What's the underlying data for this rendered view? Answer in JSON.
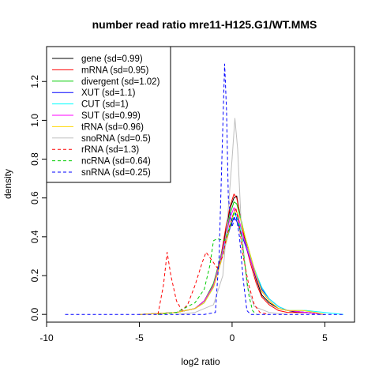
{
  "chart_data": {
    "type": "line",
    "title": "number read ratio mre11-H125.G1/WT.MMS",
    "xlabel": "log2 ratio",
    "ylabel": "density",
    "xlim": [
      -10,
      6.6
    ],
    "ylim": [
      -0.04,
      1.38
    ],
    "x_ticks": [
      -10,
      -5,
      0,
      5
    ],
    "y_ticks": [
      0.0,
      0.2,
      0.4,
      0.6,
      0.8,
      1.0,
      1.2
    ],
    "x_tick_labels": [
      "-10",
      "-5",
      "0",
      "5"
    ],
    "y_tick_labels": [
      "0.0",
      "0.2",
      "0.4",
      "0.6",
      "0.8",
      "1.0",
      "1.2"
    ],
    "grid": false,
    "legend_position": "top-left",
    "series": [
      {
        "name": "gene (sd=0.99)",
        "color": "#000000",
        "dash": "solid",
        "points": [
          [
            -5,
            0
          ],
          [
            -3,
            0.01
          ],
          [
            -2,
            0.03
          ],
          [
            -1.5,
            0.07
          ],
          [
            -1,
            0.15
          ],
          [
            -0.6,
            0.3
          ],
          [
            -0.3,
            0.45
          ],
          [
            -0.1,
            0.55
          ],
          [
            0.1,
            0.6
          ],
          [
            0.25,
            0.61
          ],
          [
            0.45,
            0.5
          ],
          [
            0.7,
            0.38
          ],
          [
            1,
            0.28
          ],
          [
            1.3,
            0.18
          ],
          [
            1.6,
            0.1
          ],
          [
            2,
            0.06
          ],
          [
            2.5,
            0.03
          ],
          [
            3,
            0.02
          ],
          [
            3.5,
            0.01
          ],
          [
            4,
            0.01
          ],
          [
            5,
            0
          ]
        ]
      },
      {
        "name": "mRNA (sd=0.95)",
        "color": "#ff0000",
        "dash": "solid",
        "points": [
          [
            -5,
            0
          ],
          [
            -3,
            0.01
          ],
          [
            -2,
            0.03
          ],
          [
            -1.5,
            0.07
          ],
          [
            -1,
            0.15
          ],
          [
            -0.6,
            0.3
          ],
          [
            -0.3,
            0.47
          ],
          [
            -0.1,
            0.56
          ],
          [
            0.1,
            0.62
          ],
          [
            0.25,
            0.6
          ],
          [
            0.45,
            0.5
          ],
          [
            0.7,
            0.37
          ],
          [
            1,
            0.26
          ],
          [
            1.3,
            0.16
          ],
          [
            1.6,
            0.09
          ],
          [
            2,
            0.05
          ],
          [
            2.5,
            0.02
          ],
          [
            3,
            0.01
          ],
          [
            4,
            0.01
          ],
          [
            5,
            0
          ]
        ]
      },
      {
        "name": "divergent (sd=1.02)",
        "color": "#00cd00",
        "dash": "solid",
        "points": [
          [
            -5,
            0
          ],
          [
            -3,
            0.01
          ],
          [
            -2,
            0.03
          ],
          [
            -1.5,
            0.07
          ],
          [
            -1,
            0.16
          ],
          [
            -0.6,
            0.3
          ],
          [
            -0.3,
            0.42
          ],
          [
            -0.1,
            0.52
          ],
          [
            0.1,
            0.58
          ],
          [
            0.25,
            0.57
          ],
          [
            0.45,
            0.5
          ],
          [
            0.7,
            0.4
          ],
          [
            1,
            0.3
          ],
          [
            1.3,
            0.2
          ],
          [
            1.6,
            0.12
          ],
          [
            2,
            0.07
          ],
          [
            2.5,
            0.03
          ],
          [
            3,
            0.02
          ],
          [
            4,
            0.01
          ],
          [
            5,
            0
          ]
        ]
      },
      {
        "name": "XUT (sd=1.1)",
        "color": "#0000ff",
        "dash": "solid",
        "points": [
          [
            -5,
            0
          ],
          [
            -3,
            0.01
          ],
          [
            -2,
            0.03
          ],
          [
            -1.5,
            0.06
          ],
          [
            -1,
            0.14
          ],
          [
            -0.6,
            0.27
          ],
          [
            -0.3,
            0.38
          ],
          [
            -0.1,
            0.45
          ],
          [
            0.1,
            0.5
          ],
          [
            0.25,
            0.48
          ],
          [
            0.45,
            0.43
          ],
          [
            0.7,
            0.36
          ],
          [
            1,
            0.28
          ],
          [
            1.3,
            0.2
          ],
          [
            1.6,
            0.13
          ],
          [
            2,
            0.08
          ],
          [
            2.5,
            0.04
          ],
          [
            3,
            0.02
          ],
          [
            4,
            0.01
          ],
          [
            5,
            0
          ]
        ]
      },
      {
        "name": "CUT (sd=1)",
        "color": "#00ffff",
        "dash": "solid",
        "points": [
          [
            -5,
            0
          ],
          [
            -3,
            0.01
          ],
          [
            -2,
            0.03
          ],
          [
            -1.5,
            0.06
          ],
          [
            -1,
            0.14
          ],
          [
            -0.6,
            0.28
          ],
          [
            -0.3,
            0.4
          ],
          [
            -0.1,
            0.47
          ],
          [
            0.1,
            0.52
          ],
          [
            0.25,
            0.5
          ],
          [
            0.45,
            0.45
          ],
          [
            0.7,
            0.37
          ],
          [
            1,
            0.29
          ],
          [
            1.3,
            0.21
          ],
          [
            1.6,
            0.14
          ],
          [
            2,
            0.08
          ],
          [
            2.5,
            0.04
          ],
          [
            3,
            0.02
          ],
          [
            4,
            0.02
          ],
          [
            5,
            0.01
          ],
          [
            6,
            0
          ]
        ]
      },
      {
        "name": "SUT (sd=0.99)",
        "color": "#ff00ff",
        "dash": "solid",
        "points": [
          [
            -5,
            0
          ],
          [
            -3,
            0.01
          ],
          [
            -2,
            0.03
          ],
          [
            -1.5,
            0.07
          ],
          [
            -1,
            0.15
          ],
          [
            -0.6,
            0.29
          ],
          [
            -0.3,
            0.42
          ],
          [
            -0.1,
            0.5
          ],
          [
            0.1,
            0.55
          ],
          [
            0.25,
            0.53
          ],
          [
            0.45,
            0.46
          ],
          [
            0.7,
            0.37
          ],
          [
            1,
            0.28
          ],
          [
            1.3,
            0.19
          ],
          [
            1.6,
            0.12
          ],
          [
            2,
            0.07
          ],
          [
            2.5,
            0.03
          ],
          [
            3,
            0.02
          ],
          [
            4,
            0.01
          ],
          [
            5,
            0
          ]
        ]
      },
      {
        "name": "tRNA (sd=0.96)",
        "color": "#ffd700",
        "dash": "solid",
        "points": [
          [
            -5,
            0
          ],
          [
            -3,
            0.01
          ],
          [
            -2,
            0.03
          ],
          [
            -1.5,
            0.06
          ],
          [
            -1,
            0.14
          ],
          [
            -0.6,
            0.27
          ],
          [
            -0.3,
            0.38
          ],
          [
            -0.1,
            0.46
          ],
          [
            0.1,
            0.52
          ],
          [
            0.25,
            0.53
          ],
          [
            0.45,
            0.49
          ],
          [
            0.7,
            0.4
          ],
          [
            1,
            0.3
          ],
          [
            1.3,
            0.2
          ],
          [
            1.6,
            0.12
          ],
          [
            2,
            0.07
          ],
          [
            2.5,
            0.03
          ],
          [
            3,
            0.02
          ],
          [
            3.8,
            0.02
          ],
          [
            4.5,
            0.01
          ],
          [
            5,
            0
          ]
        ]
      },
      {
        "name": "snoRNA (sd=0.5)",
        "color": "#bebebe",
        "dash": "solid",
        "points": [
          [
            -3,
            0
          ],
          [
            -2,
            0.01
          ],
          [
            -1,
            0.05
          ],
          [
            -0.5,
            0.2
          ],
          [
            -0.2,
            0.55
          ],
          [
            0,
            0.8
          ],
          [
            0.15,
            1.01
          ],
          [
            0.3,
            0.85
          ],
          [
            0.5,
            0.45
          ],
          [
            0.8,
            0.15
          ],
          [
            1.2,
            0.04
          ],
          [
            2,
            0.01
          ],
          [
            3,
            0
          ]
        ]
      },
      {
        "name": "rRNA (sd=1.3)",
        "color": "#ff0000",
        "dash": "dashed",
        "points": [
          [
            -4,
            0
          ],
          [
            -3.7,
            0.15
          ],
          [
            -3.5,
            0.32
          ],
          [
            -3.3,
            0.2
          ],
          [
            -3,
            0.07
          ],
          [
            -2.7,
            0.02
          ],
          [
            -2.4,
            0.05
          ],
          [
            -2,
            0.15
          ],
          [
            -1.6,
            0.27
          ],
          [
            -1.4,
            0.32
          ],
          [
            -1.1,
            0.28
          ],
          [
            -0.8,
            0.24
          ],
          [
            -0.5,
            0.3
          ],
          [
            -0.3,
            0.4
          ],
          [
            0,
            0.5
          ],
          [
            0.2,
            0.55
          ],
          [
            0.4,
            0.45
          ],
          [
            0.6,
            0.3
          ],
          [
            0.9,
            0.15
          ],
          [
            1.2,
            0.05
          ],
          [
            1.5,
            0.01
          ],
          [
            2,
            0
          ]
        ]
      },
      {
        "name": "ncRNA (sd=0.64)",
        "color": "#00cd00",
        "dash": "dashed",
        "points": [
          [
            -4,
            0
          ],
          [
            -3,
            0.01
          ],
          [
            -2,
            0.06
          ],
          [
            -1.5,
            0.13
          ],
          [
            -1.2,
            0.25
          ],
          [
            -1,
            0.38
          ],
          [
            -0.8,
            0.39
          ],
          [
            -0.4,
            0.38
          ],
          [
            -0.1,
            0.45
          ],
          [
            0.1,
            0.53
          ],
          [
            0.3,
            0.5
          ],
          [
            0.5,
            0.4
          ],
          [
            0.7,
            0.25
          ],
          [
            0.9,
            0.1
          ],
          [
            1.1,
            0.02
          ],
          [
            1.3,
            0
          ]
        ]
      },
      {
        "name": "snRNA (sd=0.25)",
        "color": "#0000ff",
        "dash": "dashed",
        "points": [
          [
            -9,
            0
          ],
          [
            -1.5,
            0
          ],
          [
            -0.9,
            0.01
          ],
          [
            -0.7,
            0.3
          ],
          [
            -0.55,
            0.8
          ],
          [
            -0.4,
            1.29
          ],
          [
            -0.3,
            1.05
          ],
          [
            -0.2,
            0.6
          ],
          [
            0,
            0.45
          ],
          [
            0.2,
            0.52
          ],
          [
            0.4,
            0.4
          ],
          [
            0.6,
            0.18
          ],
          [
            0.8,
            0.02
          ],
          [
            1,
            0
          ],
          [
            6,
            0
          ]
        ]
      }
    ]
  }
}
